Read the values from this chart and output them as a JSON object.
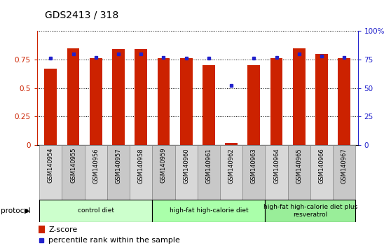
{
  "title": "GDS2413 / 318",
  "samples": [
    "GSM140954",
    "GSM140955",
    "GSM140956",
    "GSM140957",
    "GSM140958",
    "GSM140959",
    "GSM140960",
    "GSM140961",
    "GSM140962",
    "GSM140963",
    "GSM140964",
    "GSM140965",
    "GSM140966",
    "GSM140967"
  ],
  "zscore": [
    0.67,
    0.85,
    0.76,
    0.84,
    0.84,
    0.76,
    0.76,
    0.7,
    0.02,
    0.7,
    0.76,
    0.85,
    0.8,
    0.76
  ],
  "percentile": [
    76,
    80,
    77,
    80,
    80,
    77,
    76,
    76,
    52,
    76,
    77,
    80,
    78,
    77
  ],
  "bar_color": "#cc2200",
  "dot_color": "#2222cc",
  "ylim": [
    0,
    1.0
  ],
  "y2lim": [
    0,
    100
  ],
  "yticks": [
    0,
    0.25,
    0.5,
    0.75
  ],
  "ytick_labels": [
    "0",
    "0.25",
    "0.5",
    "0.75"
  ],
  "y2ticks": [
    0,
    25,
    50,
    75,
    100
  ],
  "y2tick_labels": [
    "0",
    "25",
    "50",
    "75",
    "100%"
  ],
  "groups": [
    {
      "label": "control diet",
      "start": 0,
      "end": 4,
      "color": "#ccffcc"
    },
    {
      "label": "high-fat high-calorie diet",
      "start": 5,
      "end": 9,
      "color": "#aaffaa"
    },
    {
      "label": "high-fat high-calorie diet plus\nresveratrol",
      "start": 10,
      "end": 13,
      "color": "#99ee99"
    }
  ],
  "protocol_label": "protocol",
  "legend_zscore": "Z-score",
  "legend_percentile": "percentile rank within the sample",
  "bar_width": 0.55,
  "left_axis_color": "#cc2200",
  "right_axis_color": "#2222cc",
  "cell_colors": [
    "#d8d8d8",
    "#c8c8c8"
  ]
}
